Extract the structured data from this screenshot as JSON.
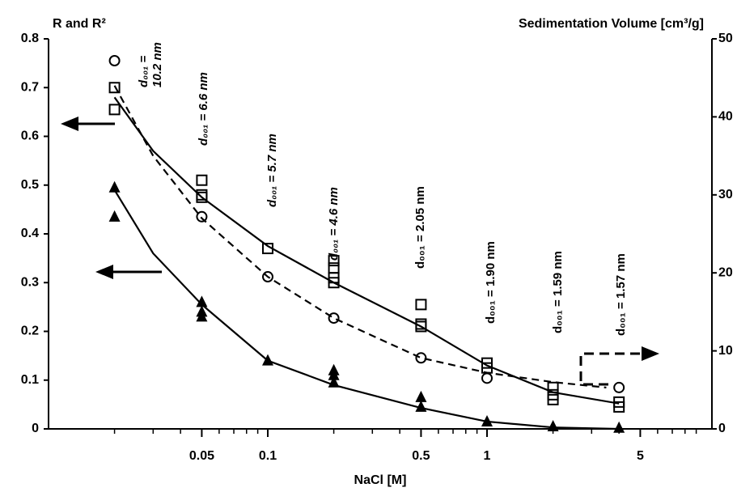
{
  "chart_data": {
    "type": "scatter",
    "y_label": "R and R²",
    "y2_label": "Sedimentation Volume [cm³/g]",
    "x_label": "NaCl  [M]",
    "log_x": true,
    "xlim": [
      0.01,
      10
    ],
    "xticks": [
      0.05,
      0.1,
      0.5,
      1,
      5
    ],
    "xminorticks": [
      0.02,
      0.03,
      0.04,
      0.06,
      0.07,
      0.08,
      0.09,
      0.2,
      0.3,
      0.4,
      0.6,
      0.7,
      0.8,
      0.9,
      2,
      3,
      4,
      6,
      7,
      8,
      9
    ],
    "ylim": [
      0,
      0.8
    ],
    "yticks": [
      0,
      0.1,
      0.2,
      0.3,
      0.4,
      0.5,
      0.6,
      0.7,
      0.8
    ],
    "y2lim": [
      0,
      50
    ],
    "y2ticks": [
      0,
      10,
      20,
      30,
      40,
      50
    ],
    "series": [
      {
        "marker": "square",
        "color": "#000000",
        "x": [
          0.02,
          0.02,
          0.05,
          0.05,
          0.05,
          0.1,
          0.2,
          0.2,
          0.2,
          0.2,
          0.5,
          0.5,
          0.5,
          1,
          1,
          2,
          2,
          2,
          4,
          4
        ],
        "values": [
          0.7,
          0.655,
          0.51,
          0.48,
          0.475,
          0.37,
          0.345,
          0.33,
          0.31,
          0.3,
          0.255,
          0.215,
          0.21,
          0.135,
          0.125,
          0.085,
          0.07,
          0.06,
          0.055,
          0.045
        ]
      },
      {
        "marker": "circle",
        "color": "#000000",
        "axis": "y2",
        "x": [
          0.02,
          0.05,
          0.1,
          0.2,
          0.5,
          1,
          4
        ],
        "values": [
          47.2,
          27.2,
          19.5,
          14.2,
          9.1,
          6.5,
          5.3
        ]
      },
      {
        "marker": "triangle",
        "color": "#000000",
        "x": [
          0.02,
          0.02,
          0.05,
          0.05,
          0.05,
          0.1,
          0.2,
          0.2,
          0.2,
          0.5,
          0.5,
          1,
          2,
          4
        ],
        "values": [
          0.495,
          0.435,
          0.26,
          0.24,
          0.23,
          0.14,
          0.12,
          0.11,
          0.095,
          0.065,
          0.045,
          0.015,
          0.005,
          0.002
        ]
      },
      {
        "marker": "line",
        "color": "#000000",
        "x": [
          0.02,
          0.03,
          0.05,
          0.1,
          0.2,
          0.5,
          1,
          2,
          4
        ],
        "values": [
          0.68,
          0.57,
          0.475,
          0.375,
          0.3,
          0.21,
          0.13,
          0.075,
          0.052
        ]
      },
      {
        "marker": "line",
        "color": "#000000",
        "axis": "y2",
        "dashed": true,
        "x": [
          0.02,
          0.03,
          0.05,
          0.1,
          0.2,
          0.5,
          1,
          2,
          3.5
        ],
        "values": [
          44,
          35,
          27,
          19.5,
          14.2,
          9.1,
          7.2,
          6,
          5.3
        ]
      },
      {
        "marker": "line",
        "color": "#000000",
        "x": [
          0.02,
          0.03,
          0.05,
          0.1,
          0.2,
          0.5,
          1,
          2,
          4
        ],
        "values": [
          0.49,
          0.36,
          0.255,
          0.14,
          0.09,
          0.043,
          0.015,
          0.003,
          0
        ]
      }
    ],
    "annotations": [
      "d₀₀₁ =",
      "10.2 nm",
      "d₀₀₁ = 6.6 nm",
      "d₀₀₁ = 5.7 nm",
      "d₀₀₁ = 4.6 nm",
      "d₀₀₁ = 2.05 nm",
      "d₀₀₁ = 1.90 nm",
      "d₀₀₁ = 1.59 nm",
      "d₀₀₁ = 1.57 nm"
    ]
  }
}
